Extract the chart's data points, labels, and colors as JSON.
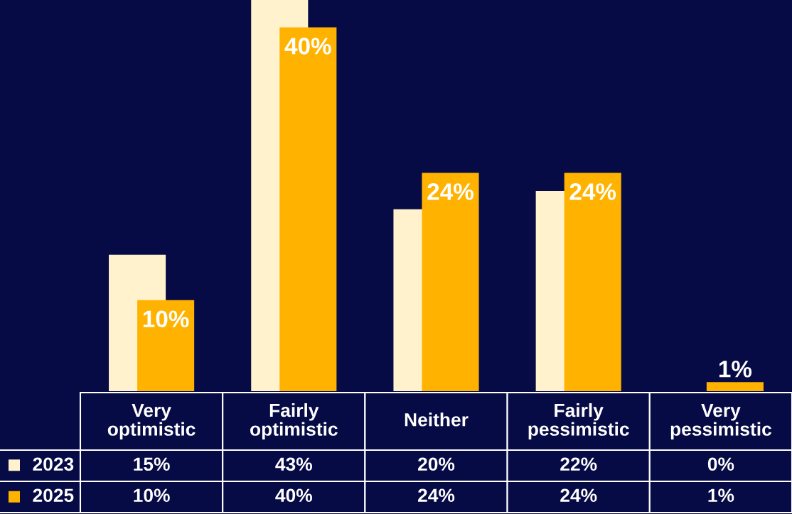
{
  "chart_data": {
    "type": "bar",
    "categories": [
      "Very\noptimistic",
      "Fairly\noptimistic",
      "Neither",
      "Fairly\npessimistic",
      "Very\npessimistic"
    ],
    "series": [
      {
        "name": "2023",
        "color": "#fff2cc",
        "values": [
          15,
          43,
          20,
          22,
          0
        ],
        "value_labels": [
          "15%",
          "43%",
          "20%",
          "22%",
          "0%"
        ]
      },
      {
        "name": "2025",
        "color": "#ffb300",
        "values": [
          10,
          40,
          24,
          24,
          1
        ],
        "value_labels": [
          "10%",
          "40%",
          "24%",
          "24%",
          "1%"
        ]
      }
    ],
    "data_labels": true,
    "legend": "bottom left"
  }
}
